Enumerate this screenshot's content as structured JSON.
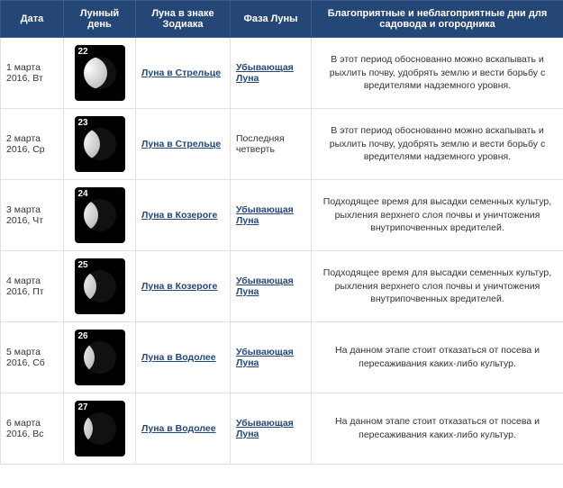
{
  "headers": {
    "date": "Дата",
    "lunar_day": "Лунный день",
    "zodiac": "Луна в знаке Зодиака",
    "phase": "Фаза Луны",
    "advice": "Благоприятные и неблагоприятные дни для садовода и огородника"
  },
  "rows": [
    {
      "date": "1 марта 2016, Вт",
      "lunar_day": "22",
      "moon_class": "waning-gibbous",
      "zodiac": "Луна в Стрельце",
      "phase": "Убывающая Луна",
      "phase_link": true,
      "advice": "В этот период обоснованно можно вскапывать и рыхлить почву, удобрять землю и вести борьбу с вредителями надземного уровня."
    },
    {
      "date": "2 марта 2016, Ср",
      "lunar_day": "23",
      "moon_class": "last-quarter",
      "zodiac": "Луна в Стрельце",
      "phase": "Последняя четверть",
      "phase_link": false,
      "advice": "В этот период обоснованно можно вскапывать и рыхлить почву, удобрять землю и вести борьбу с вредителями надземного уровня."
    },
    {
      "date": "3 марта 2016, Чт",
      "lunar_day": "24",
      "moon_class": "waning-crescent-1",
      "zodiac": "Луна в Козероге",
      "phase": "Убывающая Луна",
      "phase_link": true,
      "advice": "Подходящее время для высадки семенных культур, рыхления верхнего слоя почвы и уничтожения внутрипочвенных вредителей."
    },
    {
      "date": "4 марта 2016, Пт",
      "lunar_day": "25",
      "moon_class": "waning-crescent-2",
      "zodiac": "Луна в Козероге",
      "phase": "Убывающая Луна",
      "phase_link": true,
      "advice": "Подходящее время для высадки семенных культур, рыхления верхнего слоя почвы и уничтожения внутрипочвенных вредителей."
    },
    {
      "date": "5 марта 2016, Сб",
      "lunar_day": "26",
      "moon_class": "waning-crescent-3",
      "zodiac": "Луна в Водолее",
      "phase": "Убывающая Луна",
      "phase_link": true,
      "advice": "На данном этапе стоит отказаться от посева и пересаживания каких-либо культур."
    },
    {
      "date": "6 марта 2016, Вс",
      "lunar_day": "27",
      "moon_class": "waning-crescent-4",
      "zodiac": "Луна в Водолее",
      "phase": "Убывающая Луна",
      "phase_link": true,
      "advice": "На данном этапе стоит отказаться от посева и пересаживания каких-либо культур."
    }
  ]
}
